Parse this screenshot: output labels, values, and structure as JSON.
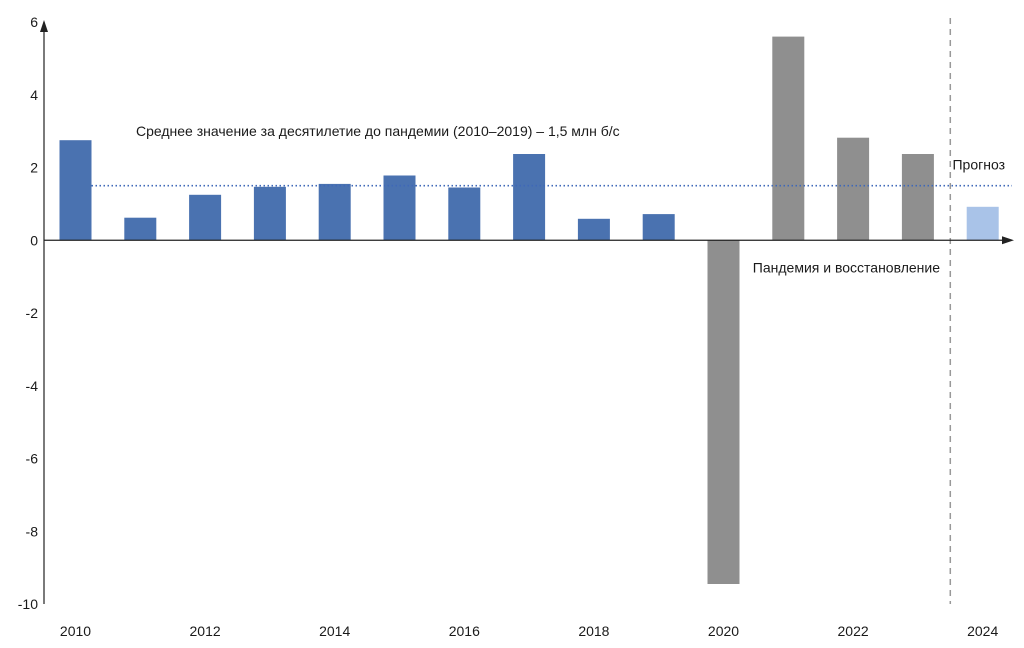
{
  "chart_data": {
    "type": "bar",
    "categories": [
      "2010",
      "2011",
      "2012",
      "2013",
      "2014",
      "2015",
      "2016",
      "2017",
      "2018",
      "2019",
      "2020",
      "2021",
      "2022",
      "2023",
      "2024"
    ],
    "series": [
      {
        "values": [
          2.75,
          0.62,
          1.25,
          1.47,
          1.55,
          1.78,
          1.45,
          2.37,
          0.59,
          0.72,
          -9.45,
          5.6,
          2.82,
          2.37,
          0.92
        ]
      }
    ],
    "bar_groups": [
      "pre",
      "pre",
      "pre",
      "pre",
      "pre",
      "pre",
      "pre",
      "pre",
      "pre",
      "pre",
      "pandemic",
      "pandemic",
      "pandemic",
      "pandemic",
      "forecast"
    ],
    "group_colors": {
      "pre": "#4a72b0",
      "pandemic": "#8f8f8f",
      "forecast": "#a9c3e8"
    },
    "x_tick_labels": [
      "2010",
      "2012",
      "2014",
      "2016",
      "2018",
      "2020",
      "2022",
      "2024"
    ],
    "y_ticks": [
      6,
      4,
      2,
      0,
      -2,
      -4,
      -6,
      -8,
      -10
    ],
    "ylim": [
      -10,
      6
    ],
    "average_line": {
      "value": 1.5,
      "color": "#3f68b8"
    },
    "forecast_divider_after": "2023",
    "annotations": {
      "average_label": "Среднее значение за десятилетие до пандемии (2010–2019) – 1,5 млн б/с",
      "pandemic_label": "Пандемия и восстановление",
      "forecast_label": "Прогноз"
    },
    "grid": false,
    "title": "",
    "xlabel": "",
    "ylabel": ""
  }
}
